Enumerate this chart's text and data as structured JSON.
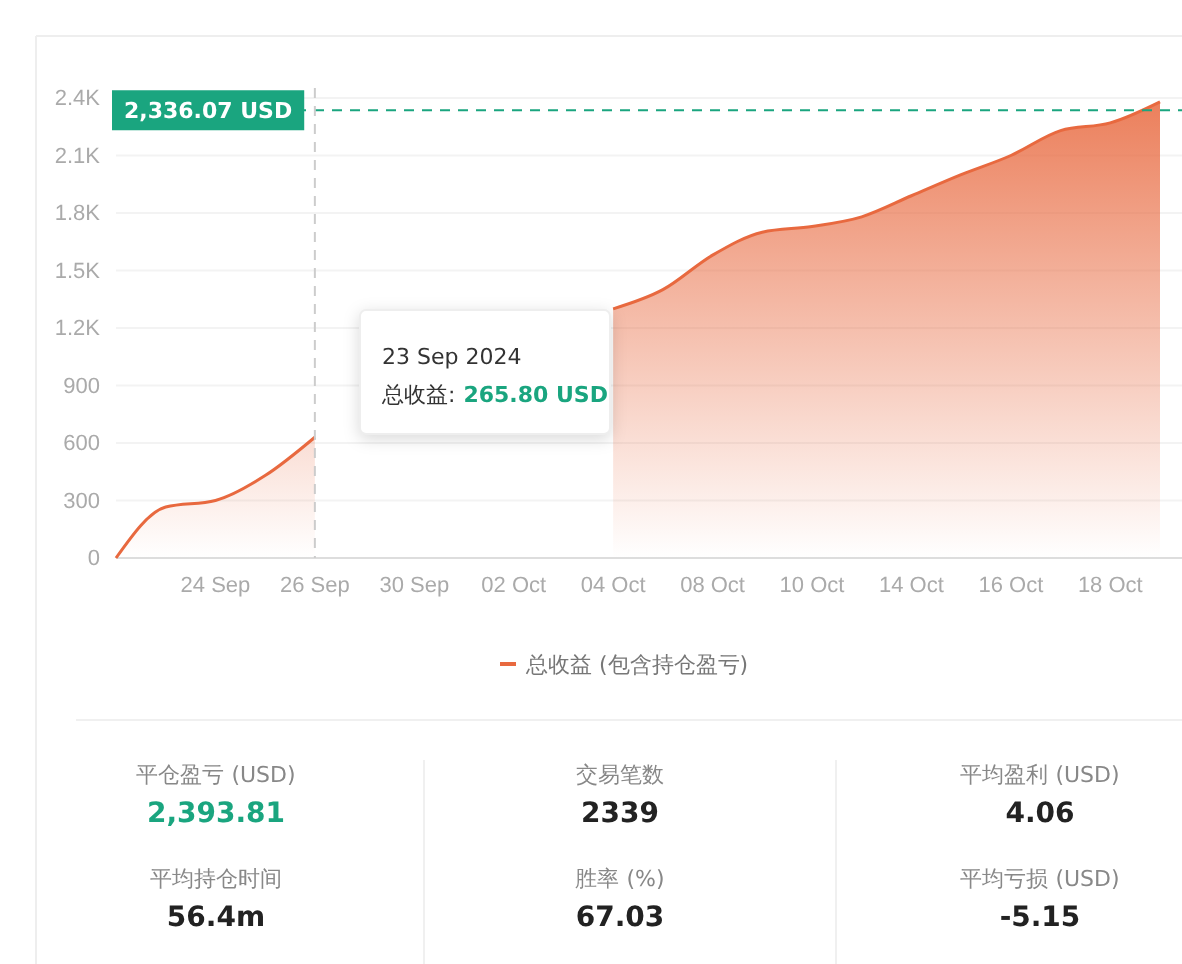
{
  "chart_data": [
    {
      "type": "area",
      "categories": [
        null,
        null,
        "24 Sep",
        null,
        "26 Sep",
        null,
        "30 Sep",
        null,
        "02 Oct",
        null,
        "04 Oct",
        null,
        "08 Oct",
        null,
        "10 Oct",
        null,
        "14 Oct",
        null,
        "16 Oct",
        null,
        "18 Oct",
        null
      ],
      "series": [
        {
          "name": "总收益 (包含持仓盈亏)",
          "color": "#e8693f",
          "values": [
            0,
            265.8,
            300,
            430,
            630,
            null,
            null,
            null,
            null,
            null,
            1300,
            1400,
            1580,
            1700,
            1730,
            1780,
            1890,
            2000,
            2100,
            2230,
            2270,
            2380
          ]
        }
      ],
      "ylim": [
        0,
        2400
      ],
      "yticks": [
        0,
        300,
        600,
        900,
        {
          "value": 1200,
          "label": "1.2K"
        },
        {
          "value": 1500,
          "label": "1.5K"
        },
        {
          "value": 1800,
          "label": "1.8K"
        },
        {
          "value": 2100,
          "label": "2.1K"
        },
        {
          "value": 2400,
          "label": "2.4K"
        }
      ],
      "grid": "y",
      "legend": "bottom",
      "ref_lines": [
        {
          "axis": "y",
          "value": 2336.07,
          "label": "2,336.07 USD",
          "color": "#1aa57f",
          "line_style": "dashed"
        },
        {
          "axis": "x",
          "value": "26 Sep",
          "color": "#cccccc",
          "line_style": "dashed"
        }
      ],
      "annotations": [
        "23 Sep 2024",
        "总收益:",
        "265.80 USD"
      ]
    },
    {
      "type": "other",
      "annotations": [
        "平仓盈亏 (USD)",
        "2,393.81",
        "交易笔数",
        "2339",
        "平均盈利 (USD)",
        "4.06",
        "平均持仓时间",
        "56.4m",
        "胜率 (%)",
        "67.03",
        "平均亏损 (USD)",
        "-5.15"
      ],
      "colors": [
        "#888888",
        "#1aa57f",
        "#888888",
        "#222222",
        "#888888",
        "#222222",
        "#888888",
        "#222222",
        "#888888",
        "#222222",
        "#888888",
        "#222222"
      ]
    }
  ]
}
